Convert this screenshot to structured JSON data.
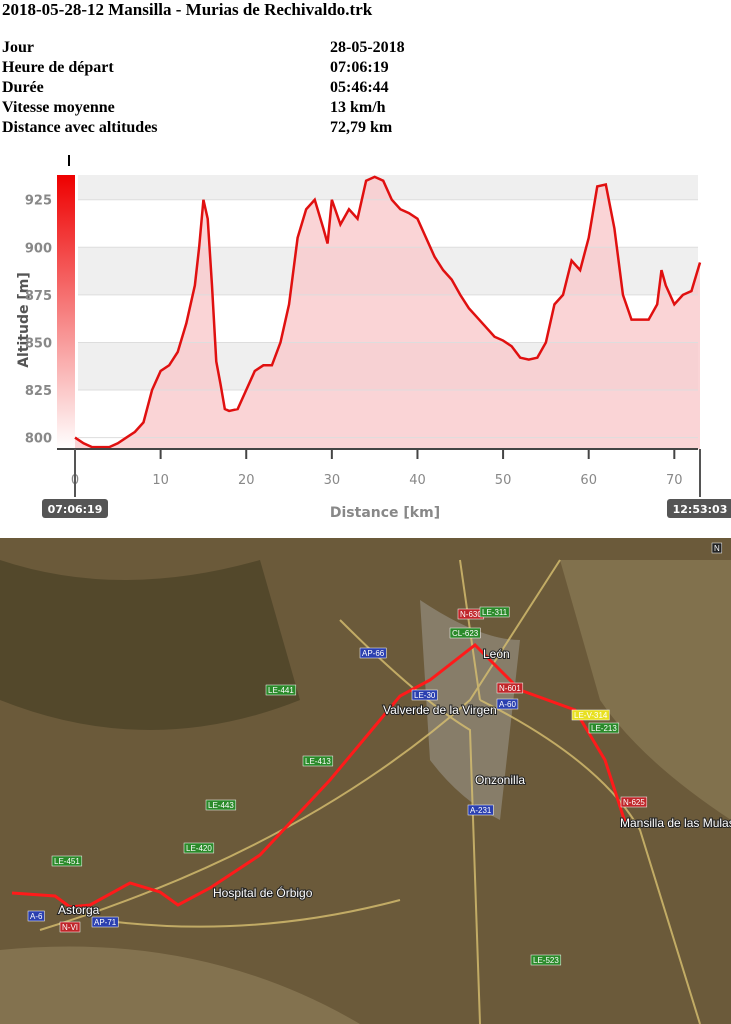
{
  "header": {
    "title": "2018-05-28-12 Mansilla - Murias de Rechivaldo.trk"
  },
  "info": {
    "rows": [
      [
        "Jour",
        "28-05-2018"
      ],
      [
        "Heure de départ",
        "07:06:19"
      ],
      [
        "Durée",
        "05:46:44"
      ],
      [
        "Vitesse moyenne",
        "13 km/h"
      ],
      [
        "Distance avec altitudes",
        "72,79 km"
      ]
    ]
  },
  "chart_data": {
    "type": "area",
    "x_label": "Distance [km]",
    "y_label": "Altitude [m]",
    "start_label": "07:06:19",
    "end_label": "12:53:03",
    "color": "#e01010",
    "fill": "#f9c9cc",
    "grid": true,
    "x": [
      0,
      1,
      2,
      4,
      5,
      6,
      7,
      8,
      9,
      10,
      11,
      12,
      13,
      14,
      14.5,
      15,
      15.5,
      16,
      16.5,
      17,
      17.5,
      18,
      19,
      20,
      21,
      22,
      23,
      24,
      25,
      26,
      27,
      28,
      29,
      29.5,
      30,
      31,
      32,
      33,
      34,
      35,
      36,
      37,
      38,
      39,
      40,
      41,
      42,
      43,
      44,
      45,
      46,
      47,
      48,
      49,
      50,
      51,
      52,
      53,
      54,
      55,
      56,
      57,
      58,
      59,
      60,
      61,
      62,
      63,
      64,
      65,
      66,
      67,
      68,
      68.5,
      69,
      70,
      71,
      72,
      73
    ],
    "values": [
      800,
      797,
      795,
      795,
      797,
      800,
      803,
      808,
      825,
      835,
      838,
      845,
      860,
      880,
      900,
      925,
      915,
      880,
      840,
      828,
      815,
      814,
      815,
      825,
      835,
      838,
      838,
      850,
      870,
      905,
      920,
      925,
      910,
      902,
      925,
      912,
      920,
      915,
      935,
      937,
      935,
      925,
      920,
      918,
      915,
      905,
      895,
      888,
      883,
      875,
      868,
      863,
      858,
      853,
      851,
      848,
      842,
      841,
      842,
      850,
      870,
      875,
      893,
      888,
      905,
      932,
      933,
      910,
      875,
      862,
      862,
      862,
      870,
      888,
      880,
      870,
      875,
      877,
      892
    ],
    "xlim": [
      0,
      73
    ],
    "ylim": [
      794,
      938
    ],
    "xticks": [
      0,
      10,
      20,
      30,
      40,
      50,
      60,
      70
    ],
    "yticks": [
      800,
      825,
      850,
      875,
      900,
      925
    ]
  },
  "map": {
    "places": [
      "León",
      "Valverde de la Virgen",
      "Onzonilla",
      "Mansilla de las Mulas",
      "Hospital de Órbigo",
      "Astorga"
    ],
    "roads": [
      "AP-66",
      "LE-441",
      "LE-30",
      "A-60",
      "N-601",
      "LE-V-314",
      "LE-213",
      "LE-413",
      "LE-443",
      "LE-420",
      "LE-451",
      "A-231",
      "N-625",
      "A-6",
      "N-VI",
      "AP-71",
      "LE-523",
      "N-630",
      "LE-311",
      "CL-623",
      "N"
    ]
  }
}
